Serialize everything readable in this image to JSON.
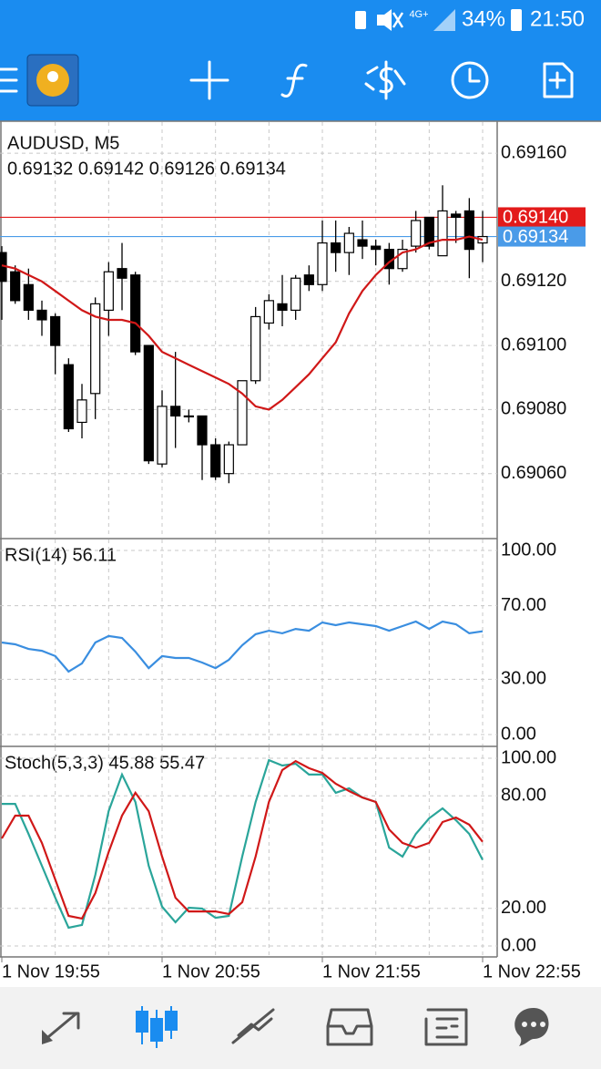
{
  "status_bar": {
    "network": "4G+",
    "battery": "34%",
    "time": "21:50"
  },
  "chart_data": [
    {
      "type": "candlestick",
      "title": "AUDUSD, M5",
      "subtitle": "0.69132 0.69142 0.69126 0.69134",
      "categories": [
        "1 Nov 19:55",
        null,
        null,
        null,
        null,
        null,
        null,
        null,
        null,
        null,
        null,
        null,
        "1 Nov 20:55",
        null,
        null,
        null,
        null,
        null,
        null,
        null,
        null,
        null,
        null,
        null,
        "1 Nov 21:55",
        null,
        null,
        null,
        null,
        null,
        null,
        null,
        null,
        null,
        null,
        null,
        "1 Nov 22:55"
      ],
      "open": [
        0.69129,
        0.69123,
        0.69119,
        0.69111,
        0.69109,
        0.69094,
        0.69076,
        0.69085,
        0.69111,
        0.69124,
        0.69122,
        0.691,
        0.69063,
        0.69081,
        0.69078,
        0.69078,
        0.69069,
        0.6906,
        0.69069,
        0.69089,
        0.69107,
        0.69113,
        0.69111,
        0.69122,
        0.69119,
        0.69132,
        0.69129,
        0.69133,
        0.69131,
        0.6913,
        0.69124,
        0.69131,
        0.6914,
        0.69128,
        0.69141,
        0.69142,
        0.69132
      ],
      "high": [
        0.69131,
        0.69125,
        0.69124,
        0.69114,
        0.6911,
        0.69096,
        0.69088,
        0.69115,
        0.69126,
        0.69132,
        0.69123,
        0.691,
        0.69086,
        0.69098,
        0.6908,
        0.69078,
        0.69071,
        0.6907,
        0.69089,
        0.69112,
        0.69116,
        0.69122,
        0.69122,
        0.69125,
        0.69139,
        0.69139,
        0.69137,
        0.69139,
        0.69133,
        0.69132,
        0.69133,
        0.69142,
        0.6914,
        0.6915,
        0.69142,
        0.69146,
        0.69142
      ],
      "low": [
        0.69108,
        0.69113,
        0.69108,
        0.69103,
        0.69091,
        0.69073,
        0.69071,
        0.69077,
        0.69103,
        0.69111,
        0.69097,
        0.69063,
        0.69062,
        0.69068,
        0.69076,
        0.69058,
        0.69058,
        0.69057,
        0.69069,
        0.69088,
        0.69105,
        0.69106,
        0.69108,
        0.69117,
        0.69117,
        0.69123,
        0.69122,
        0.69127,
        0.69125,
        0.69119,
        0.69123,
        0.69129,
        0.6913,
        0.69128,
        0.69132,
        0.69121,
        0.69126
      ],
      "close": [
        0.6912,
        0.69114,
        0.69111,
        0.69108,
        0.691,
        0.69074,
        0.69083,
        0.69113,
        0.69123,
        0.69121,
        0.69098,
        0.69064,
        0.69081,
        0.69078,
        0.69078,
        0.69069,
        0.69059,
        0.69069,
        0.69089,
        0.69109,
        0.69114,
        0.69111,
        0.69121,
        0.69119,
        0.69132,
        0.69129,
        0.69135,
        0.69131,
        0.6913,
        0.69124,
        0.6913,
        0.69139,
        0.69131,
        0.69142,
        0.6914,
        0.6913,
        0.69134
      ],
      "series": [
        {
          "color": "#d01818",
          "values": [
            0.69125,
            0.69124,
            0.69122,
            0.6912,
            0.69117,
            0.69114,
            0.69111,
            0.69109,
            0.69108,
            0.69108,
            0.69107,
            0.69103,
            0.69098,
            0.69096,
            0.69094,
            0.69092,
            0.6909,
            0.69088,
            0.69085,
            0.69081,
            0.6908,
            0.69083,
            0.69087,
            0.69091,
            0.69096,
            0.69101,
            0.6911,
            0.69117,
            0.69122,
            0.69126,
            0.69129,
            0.6913,
            0.69132,
            0.69133,
            0.69133,
            0.69134,
            0.69133
          ]
        }
      ],
      "price_lines": [
        {
          "value": 0.6914,
          "label": "0.69140",
          "color": "#e31b1b"
        },
        {
          "value": 0.69134,
          "label": "0.69134",
          "color": "#4a9be8"
        }
      ],
      "ylim": [
        0.6904,
        0.6917
      ],
      "yticks": [
        {
          "value": 0.6916,
          "label": "0.69160"
        },
        {
          "value": 0.6912,
          "label": "0.69120"
        },
        {
          "value": 0.691,
          "label": "0.69100"
        },
        {
          "value": 0.6908,
          "label": "0.69080"
        },
        {
          "value": 0.6906,
          "label": "0.69060"
        }
      ],
      "up_color": "#ffffff",
      "down_color": "#000000",
      "grid": true
    },
    {
      "type": "line",
      "title": "RSI(14) 56.11",
      "series": [
        {
          "color": "#3a8ee0",
          "values": [
            50.0,
            49.0,
            46.5,
            45.5,
            42.6,
            34.2,
            38.6,
            50.0,
            53.5,
            52.5,
            45.0,
            36.1,
            42.6,
            41.6,
            41.6,
            39.1,
            36.1,
            40.6,
            48.5,
            54.5,
            56.4,
            55.0,
            57.4,
            56.4,
            60.9,
            59.4,
            60.9,
            59.9,
            58.9,
            56.4,
            58.9,
            61.4,
            57.4,
            61.4,
            59.9,
            55.0,
            56.11
          ]
        }
      ],
      "ylim": [
        0,
        100
      ],
      "yticks": [
        {
          "value": 100,
          "label": "100.00"
        },
        {
          "value": 70,
          "label": "70.00"
        },
        {
          "value": 30,
          "label": "30.00"
        },
        {
          "value": 0,
          "label": "0.00"
        }
      ],
      "grid": true
    },
    {
      "type": "line",
      "title": "Stoch(5,3,3) 45.88 55.47",
      "series": [
        {
          "color": "#2aa59a",
          "values": [
            75.7,
            75.7,
            59.7,
            42.7,
            25.7,
            9.7,
            11.2,
            37.9,
            71.8,
            91.3,
            76.7,
            42.7,
            20.9,
            12.6,
            20.4,
            19.9,
            15.0,
            16.0,
            47.6,
            76.7,
            99.0,
            96.1,
            97.1,
            91.3,
            91.3,
            81.6,
            84.0,
            79.1,
            76.7,
            52.4,
            47.6,
            59.7,
            68.0,
            73.3,
            67.0,
            59.7,
            45.88
          ]
        },
        {
          "color": "#d01818",
          "values": [
            57.3,
            69.4,
            69.4,
            54.9,
            35.4,
            16.0,
            14.6,
            28.2,
            50.0,
            69.4,
            81.6,
            71.8,
            47.6,
            25.7,
            18.4,
            18.4,
            18.4,
            17.0,
            23.3,
            47.6,
            76.7,
            93.7,
            98.5,
            94.7,
            92.2,
            86.4,
            82.5,
            79.1,
            76.7,
            62.1,
            54.9,
            52.4,
            54.9,
            66.0,
            68.4,
            64.6,
            55.47
          ]
        }
      ],
      "ylim": [
        0,
        100
      ],
      "yticks": [
        {
          "value": 100,
          "label": "100.00"
        },
        {
          "value": 80,
          "label": "80.00"
        },
        {
          "value": 20,
          "label": "20.00"
        },
        {
          "value": 0,
          "label": "0.00"
        }
      ],
      "grid": true
    }
  ]
}
